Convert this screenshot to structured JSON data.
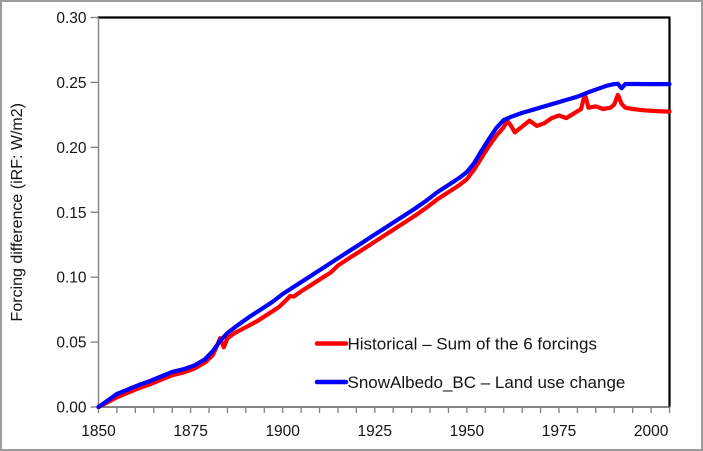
{
  "chart_data": {
    "type": "line",
    "title": "",
    "xlabel": "",
    "ylabel": "Forcing difference (iRF: W/m2)",
    "xlim": [
      1850,
      2005
    ],
    "ylim": [
      0.0,
      0.3
    ],
    "grid": false,
    "x_major_ticks": [
      1850,
      1875,
      1900,
      1925,
      1950,
      1975,
      2000
    ],
    "x_minor_tick_step": 5,
    "y_ticks": [
      0.0,
      0.05,
      0.1,
      0.15,
      0.2,
      0.25,
      0.3
    ],
    "y_tick_format_decimals": 2,
    "legend_position": "inside-lower-right",
    "series": [
      {
        "name": "Historical – Sum of the 6 forcings",
        "color": "#ff0000",
        "points": [
          [
            1850,
            0.0
          ],
          [
            1852,
            0.003
          ],
          [
            1855,
            0.0075
          ],
          [
            1858,
            0.011
          ],
          [
            1861,
            0.0145
          ],
          [
            1864,
            0.0175
          ],
          [
            1867,
            0.021
          ],
          [
            1870,
            0.0245
          ],
          [
            1873,
            0.0265
          ],
          [
            1876,
            0.0295
          ],
          [
            1879,
            0.0345
          ],
          [
            1881,
            0.04
          ],
          [
            1882,
            0.046
          ],
          [
            1883,
            0.053
          ],
          [
            1884,
            0.046
          ],
          [
            1885,
            0.053
          ],
          [
            1887,
            0.057
          ],
          [
            1890,
            0.0615
          ],
          [
            1893,
            0.066
          ],
          [
            1896,
            0.0715
          ],
          [
            1899,
            0.077
          ],
          [
            1901,
            0.0825
          ],
          [
            1902,
            0.0855
          ],
          [
            1903,
            0.085
          ],
          [
            1905,
            0.089
          ],
          [
            1908,
            0.0945
          ],
          [
            1911,
            0.1
          ],
          [
            1913,
            0.1035
          ],
          [
            1915,
            0.109
          ],
          [
            1918,
            0.1145
          ],
          [
            1921,
            0.12
          ],
          [
            1924,
            0.1255
          ],
          [
            1927,
            0.131
          ],
          [
            1930,
            0.1365
          ],
          [
            1933,
            0.142
          ],
          [
            1936,
            0.1475
          ],
          [
            1939,
            0.1535
          ],
          [
            1942,
            0.16
          ],
          [
            1945,
            0.1655
          ],
          [
            1948,
            0.171
          ],
          [
            1950,
            0.1755
          ],
          [
            1952,
            0.183
          ],
          [
            1954,
            0.192
          ],
          [
            1956,
            0.201
          ],
          [
            1958,
            0.209
          ],
          [
            1960,
            0.2155
          ],
          [
            1961,
            0.2205
          ],
          [
            1962,
            0.2165
          ],
          [
            1963,
            0.2115
          ],
          [
            1965,
            0.216
          ],
          [
            1967,
            0.2205
          ],
          [
            1969,
            0.2165
          ],
          [
            1971,
            0.2185
          ],
          [
            1973,
            0.2225
          ],
          [
            1975,
            0.2245
          ],
          [
            1977,
            0.2225
          ],
          [
            1979,
            0.226
          ],
          [
            1981,
            0.2295
          ],
          [
            1982,
            0.241
          ],
          [
            1983,
            0.2305
          ],
          [
            1985,
            0.2315
          ],
          [
            1987,
            0.2295
          ],
          [
            1989,
            0.2305
          ],
          [
            1990,
            0.233
          ],
          [
            1991,
            0.2405
          ],
          [
            1992,
            0.2335
          ],
          [
            1993,
            0.2305
          ],
          [
            1995,
            0.2295
          ],
          [
            1998,
            0.2285
          ],
          [
            2001,
            0.228
          ],
          [
            2005,
            0.2275
          ]
        ]
      },
      {
        "name": "SnowAlbedo_BC – Land use change",
        "color": "#0000ff",
        "points": [
          [
            1850,
            0.0
          ],
          [
            1852,
            0.004
          ],
          [
            1855,
            0.01
          ],
          [
            1858,
            0.0135
          ],
          [
            1861,
            0.017
          ],
          [
            1864,
            0.02
          ],
          [
            1867,
            0.0235
          ],
          [
            1870,
            0.027
          ],
          [
            1873,
            0.029
          ],
          [
            1876,
            0.032
          ],
          [
            1879,
            0.037
          ],
          [
            1881,
            0.043
          ],
          [
            1883,
            0.051
          ],
          [
            1885,
            0.057
          ],
          [
            1888,
            0.0635
          ],
          [
            1891,
            0.0695
          ],
          [
            1894,
            0.075
          ],
          [
            1897,
            0.0805
          ],
          [
            1900,
            0.087
          ],
          [
            1903,
            0.0925
          ],
          [
            1906,
            0.098
          ],
          [
            1909,
            0.1035
          ],
          [
            1912,
            0.109
          ],
          [
            1915,
            0.1145
          ],
          [
            1918,
            0.12
          ],
          [
            1921,
            0.1255
          ],
          [
            1924,
            0.131
          ],
          [
            1927,
            0.1365
          ],
          [
            1930,
            0.142
          ],
          [
            1933,
            0.1475
          ],
          [
            1936,
            0.153
          ],
          [
            1939,
            0.159
          ],
          [
            1942,
            0.1655
          ],
          [
            1945,
            0.171
          ],
          [
            1948,
            0.1765
          ],
          [
            1950,
            0.181
          ],
          [
            1952,
            0.188
          ],
          [
            1954,
            0.1975
          ],
          [
            1956,
            0.2065
          ],
          [
            1958,
            0.215
          ],
          [
            1960,
            0.221
          ],
          [
            1962,
            0.2235
          ],
          [
            1965,
            0.2265
          ],
          [
            1968,
            0.229
          ],
          [
            1971,
            0.2315
          ],
          [
            1974,
            0.234
          ],
          [
            1977,
            0.2365
          ],
          [
            1980,
            0.239
          ],
          [
            1983,
            0.2425
          ],
          [
            1986,
            0.2455
          ],
          [
            1988,
            0.2475
          ],
          [
            1990,
            0.2487
          ],
          [
            1991,
            0.249
          ],
          [
            1992,
            0.2455
          ],
          [
            1993,
            0.2488
          ],
          [
            1995,
            0.2488
          ],
          [
            2000,
            0.2487
          ],
          [
            2005,
            0.2487
          ]
        ]
      }
    ],
    "colors": {
      "axis_line": "#808080",
      "plot_border": "#000000",
      "bottom_axis": "#595959",
      "tick": "#808080",
      "text": "#141414",
      "frame_border": "#9c9c9c"
    }
  }
}
